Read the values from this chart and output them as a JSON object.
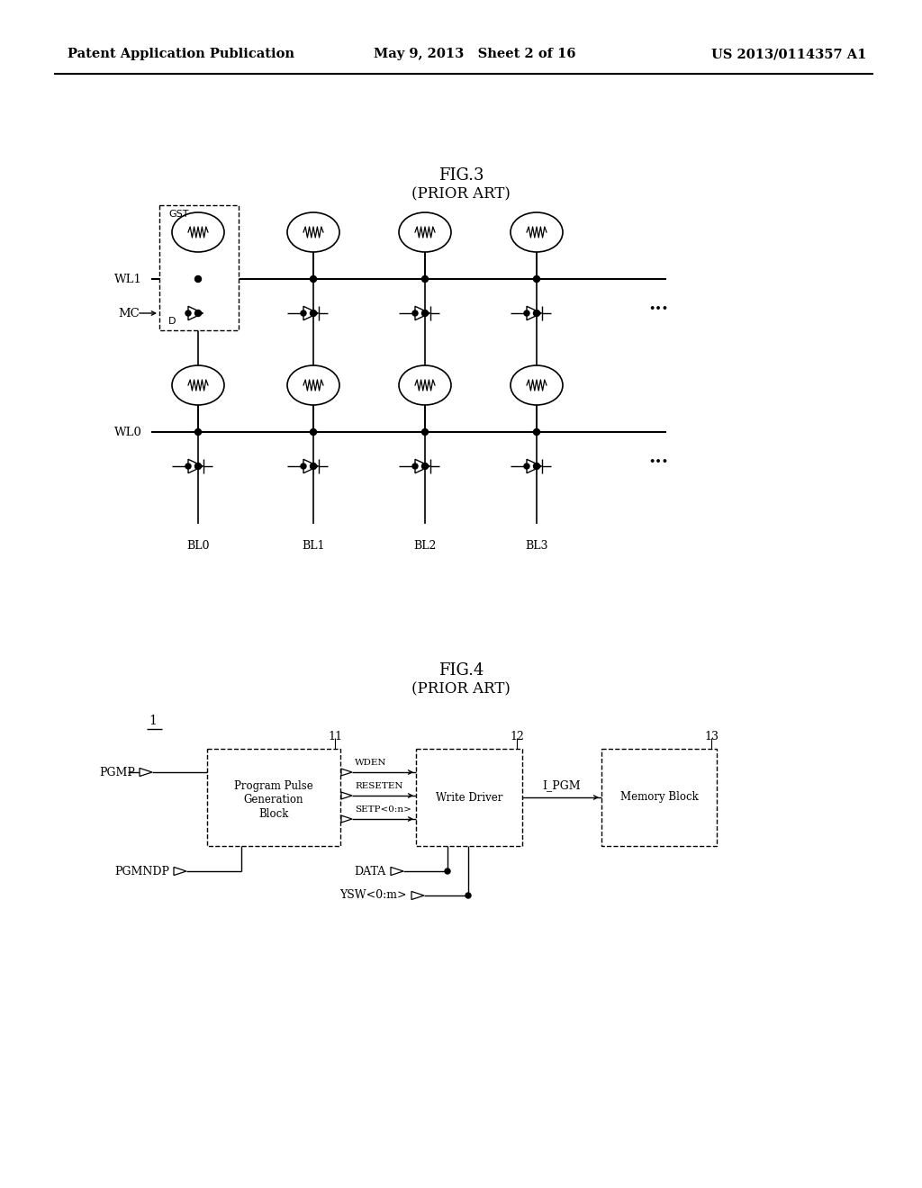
{
  "header_left": "Patent Application Publication",
  "header_mid": "May 9, 2013   Sheet 2 of 16",
  "header_right": "US 2013/0114357 A1",
  "fig3_title": "FIG.3",
  "fig3_subtitle": "(PRIOR ART)",
  "fig4_title": "FIG.4",
  "fig4_subtitle": "(PRIOR ART)",
  "bg_color": "#ffffff",
  "line_color": "#000000",
  "font_color": "#000000"
}
